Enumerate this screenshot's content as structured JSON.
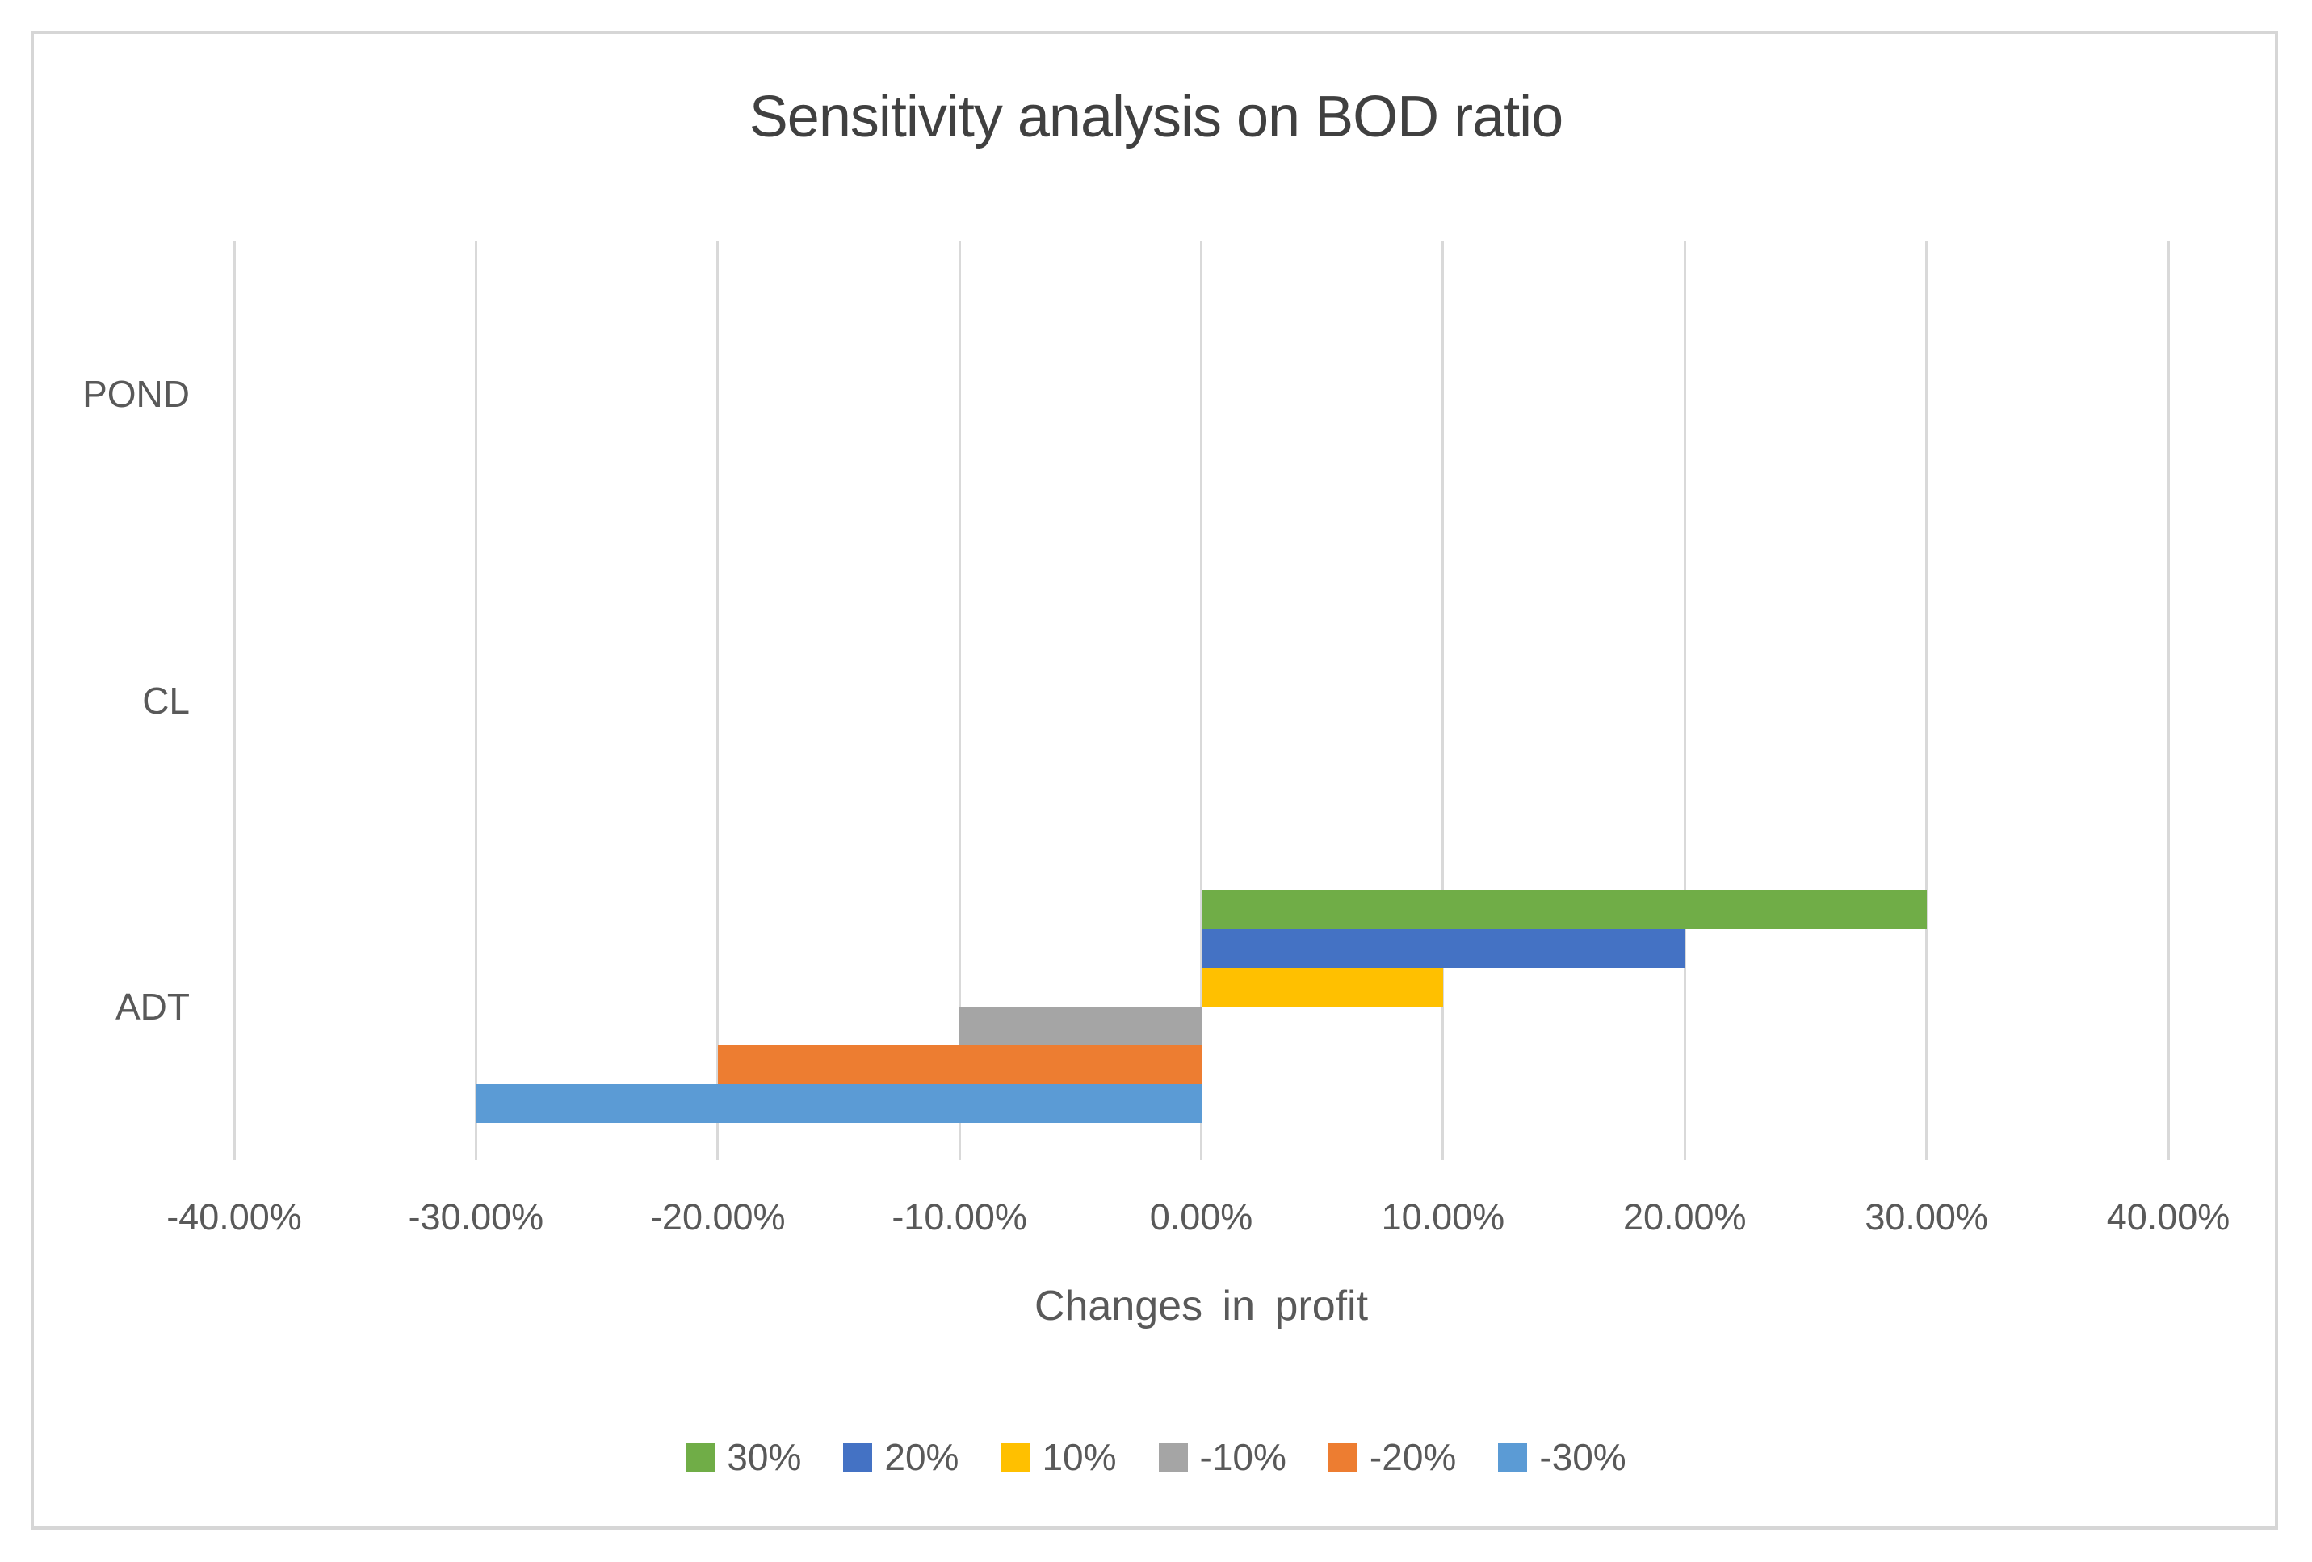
{
  "chart_data": {
    "type": "bar",
    "orientation": "horizontal",
    "title": "Sensitivity analysis on BOD ratio",
    "xlabel": "Changes in profit",
    "categories": [
      "POND",
      "CL",
      "ADT"
    ],
    "series": [
      {
        "name": "30%",
        "color": "#70AD47",
        "values": [
          0,
          0,
          30
        ]
      },
      {
        "name": "20%",
        "color": "#4472C4",
        "values": [
          0,
          0,
          20
        ]
      },
      {
        "name": "10%",
        "color": "#FFC000",
        "values": [
          0,
          0,
          10
        ]
      },
      {
        "name": "-10%",
        "color": "#A5A5A5",
        "values": [
          0,
          0,
          -10
        ]
      },
      {
        "name": "-20%",
        "color": "#ED7D31",
        "values": [
          0,
          0,
          -20
        ]
      },
      {
        "name": "-30%",
        "color": "#5B9BD5",
        "values": [
          0,
          0,
          -30
        ]
      }
    ],
    "xlim": [
      -40,
      40
    ],
    "xticks": [
      {
        "value": -40,
        "label": "-40.00%"
      },
      {
        "value": -30,
        "label": "-30.00%"
      },
      {
        "value": -20,
        "label": "-20.00%"
      },
      {
        "value": -10,
        "label": "-10.00%"
      },
      {
        "value": 0,
        "label": "0.00%"
      },
      {
        "value": 10,
        "label": "10.00%"
      },
      {
        "value": 20,
        "label": "20.00%"
      },
      {
        "value": 30,
        "label": "30.00%"
      },
      {
        "value": 40,
        "label": "40.00%"
      }
    ],
    "grid": "vertical-only",
    "legend_position": "bottom",
    "colors": {
      "title_text": "#404040",
      "axis_text": "#595959",
      "gridline": "#D9D9D9",
      "frame_border": "#D6D6D6",
      "background": "#FFFFFF"
    }
  }
}
